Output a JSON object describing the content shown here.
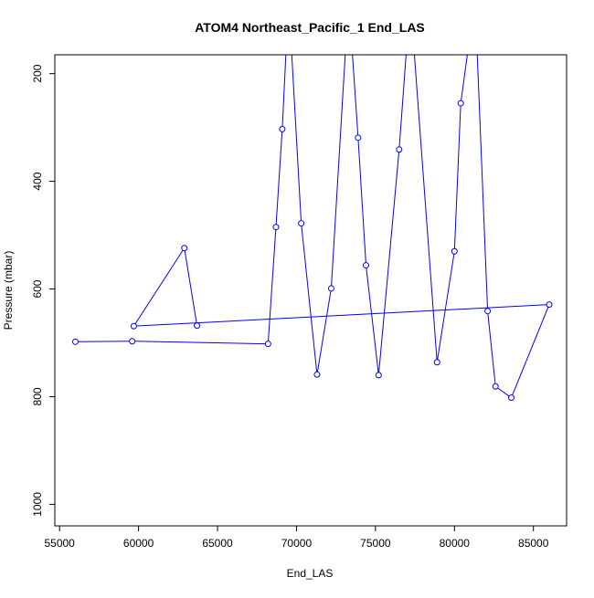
{
  "chart_data": {
    "type": "line",
    "title": "ATOM4 Northeast_Pacific_1 End_LAS",
    "xlabel": "End_LAS",
    "ylabel": "Pressure (mbar)",
    "xlim": [
      54700,
      87100
    ],
    "ylim": [
      1040,
      165
    ],
    "y_reversed": true,
    "x_ticks": [
      55000,
      60000,
      65000,
      70000,
      75000,
      80000,
      85000
    ],
    "x_tick_labels": [
      "55000",
      "60000",
      "65000",
      "70000",
      "75000",
      "80000",
      "85000"
    ],
    "y_ticks": [
      200,
      400,
      600,
      800,
      1000
    ],
    "y_tick_labels": [
      "200",
      "400",
      "600",
      "800",
      "1000"
    ],
    "grid": false,
    "legend": "none",
    "line_color": "#0000ff",
    "marker": "open-circle",
    "series": [
      {
        "x": [
          56000,
          59600,
          68200,
          68700,
          69100,
          69500,
          70300,
          71300,
          72200,
          73300,
          73900,
          74400,
          75200,
          76500,
          77200,
          78900,
          80000,
          80400,
          81300,
          82100,
          82600,
          83600,
          86000,
          59700,
          62900,
          63700
        ],
        "y": [
          698,
          697,
          702,
          485,
          303,
          60,
          478,
          759,
          599,
          60,
          319,
          556,
          760,
          341,
          60,
          736,
          530,
          255,
          60,
          641,
          781,
          802,
          629,
          669,
          524,
          668
        ],
        "markers": [
          true,
          true,
          true,
          true,
          true,
          false,
          true,
          true,
          true,
          false,
          true,
          true,
          true,
          true,
          false,
          true,
          true,
          true,
          false,
          true,
          true,
          true,
          true,
          true,
          true,
          true
        ]
      }
    ]
  }
}
